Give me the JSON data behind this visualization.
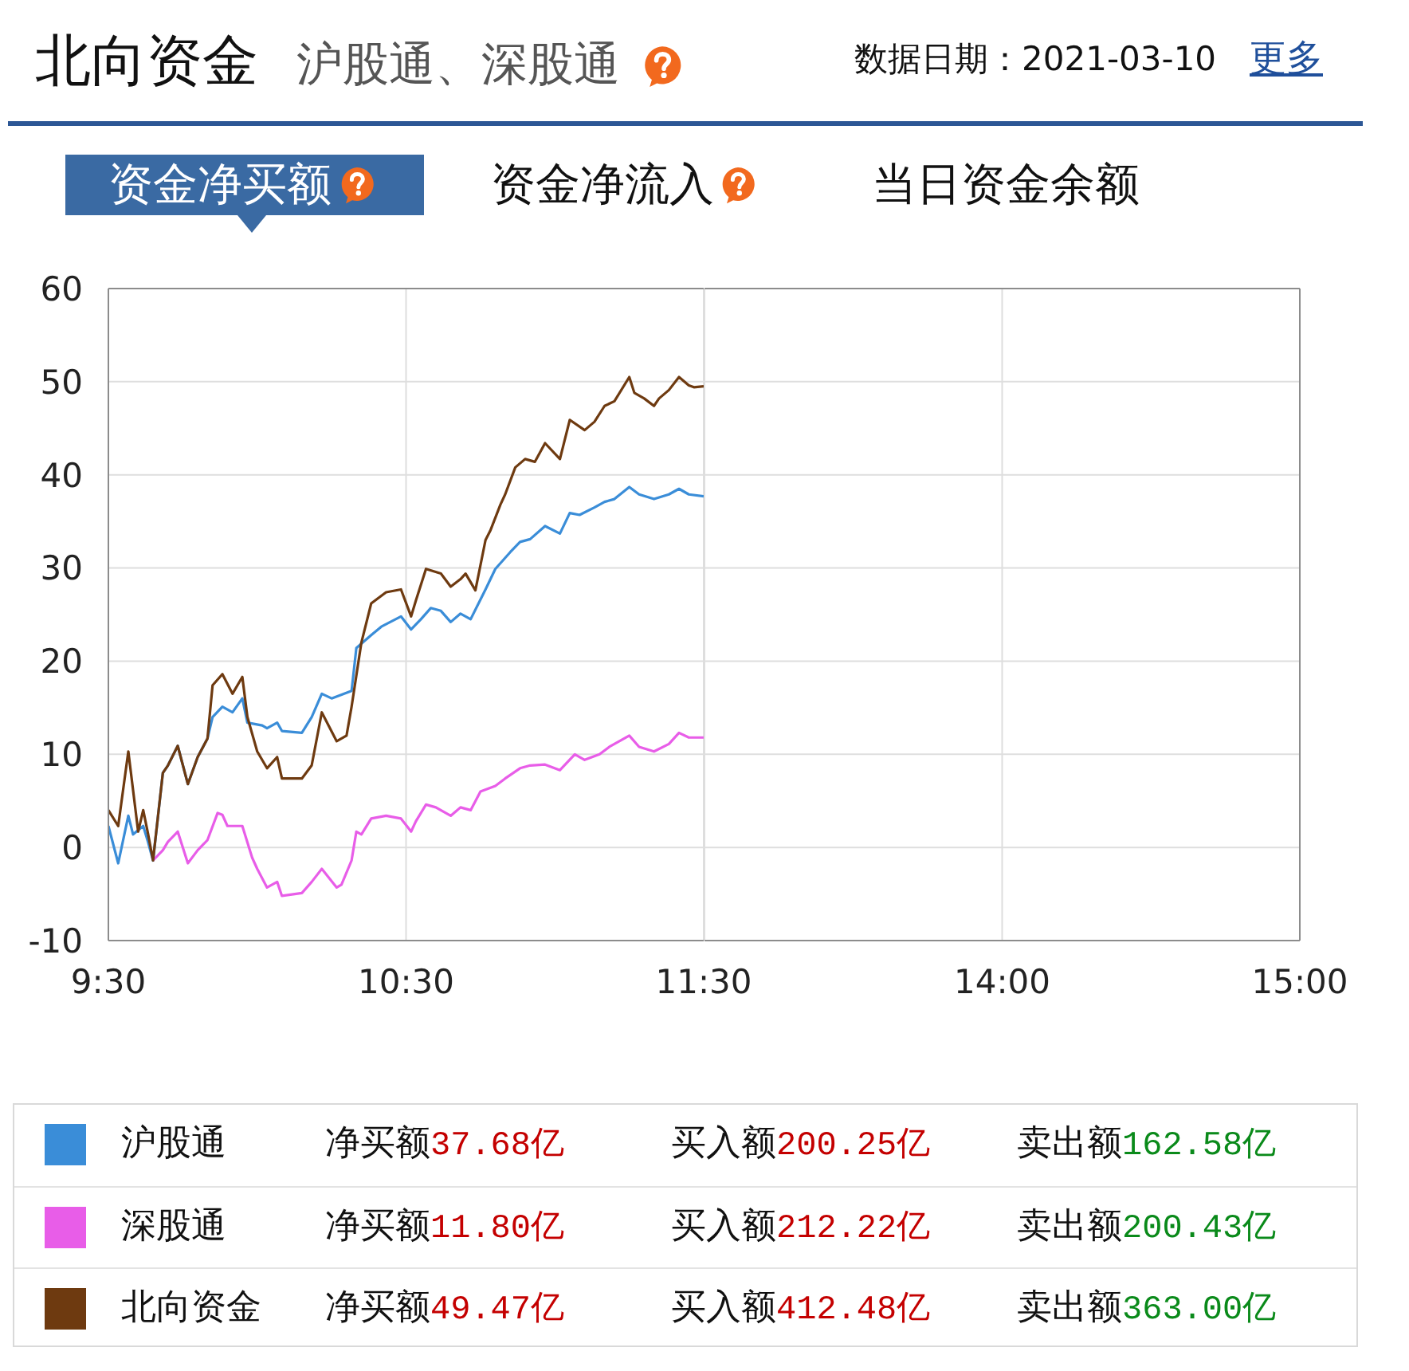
{
  "chart_data": [
    {
      "type": "line",
      "title": "北向资金",
      "subtitle": "沪股通、深股通",
      "annotations": [
        "数据日期：2021-03-10",
        "更多",
        "资金净买额",
        "资金净流入",
        "当日资金余额",
        "净买额37.68亿",
        "买入额200.25亿",
        "卖出额162.58亿",
        "净买额11.80亿",
        "买入额212.22亿",
        "卖出额200.43亿",
        "净买额49.47亿",
        "买入额412.48亿",
        "卖出额363.00亿"
      ],
      "xlim": [
        9.5,
        11.5
      ],
      "xticks": [
        {
          "value": 9.5,
          "label": "9:30"
        },
        {
          "value": 10.5,
          "label": "10:30"
        },
        {
          "value": 11.5,
          "label": "11:30"
        }
      ],
      "ylim": [
        -10,
        60
      ],
      "yticks": [
        -10,
        0,
        10,
        20,
        30,
        40,
        50,
        60
      ],
      "grid": true,
      "legend": "bottom",
      "series": [
        {
          "name": "沪股通",
          "color": "#3a8dd8",
          "x": [
            9.5,
            9.533,
            9.567,
            9.583,
            9.617,
            9.633,
            9.65,
            9.683,
            9.7,
            9.733,
            9.767,
            9.8,
            9.833,
            9.85,
            9.883,
            9.917,
            9.95,
            9.967,
            10.017,
            10.033,
            10.067,
            10.083,
            10.15,
            10.183,
            10.217,
            10.25,
            10.317,
            10.333,
            10.383,
            10.417,
            10.483,
            10.517,
            10.55,
            10.583,
            10.617,
            10.65,
            10.683,
            10.717,
            10.767,
            10.8,
            10.85,
            10.883,
            10.917,
            10.967,
            11.017,
            11.05,
            11.083,
            11.133,
            11.167,
            11.2,
            11.25,
            11.283,
            11.333,
            11.383,
            11.417,
            11.45,
            11.5
          ],
          "values": [
            2.3,
            -1.7,
            3.4,
            1.4,
            2.3,
            0.6,
            -1.4,
            8.0,
            8.8,
            10.9,
            6.8,
            9.7,
            11.7,
            14.0,
            15.1,
            14.5,
            16.0,
            13.4,
            13.1,
            12.8,
            13.4,
            12.5,
            12.3,
            14.0,
            16.5,
            16.0,
            16.8,
            21.4,
            22.8,
            23.7,
            24.8,
            23.4,
            24.5,
            25.7,
            25.4,
            24.2,
            25.1,
            24.5,
            27.7,
            29.9,
            31.7,
            32.8,
            33.1,
            34.5,
            33.7,
            35.9,
            35.7,
            36.5,
            37.1,
            37.4,
            38.7,
            37.9,
            37.4,
            37.9,
            38.5,
            37.9,
            37.7
          ]
        },
        {
          "name": "深股通",
          "color": "#e85de8",
          "x": [
            9.65,
            9.683,
            9.7,
            9.733,
            9.767,
            9.8,
            9.833,
            9.867,
            9.883,
            9.9,
            9.95,
            9.983,
            10.0,
            10.033,
            10.067,
            10.083,
            10.15,
            10.183,
            10.217,
            10.267,
            10.283,
            10.317,
            10.333,
            10.35,
            10.383,
            10.433,
            10.483,
            10.517,
            10.533,
            10.567,
            10.6,
            10.65,
            10.683,
            10.717,
            10.75,
            10.8,
            10.833,
            10.883,
            10.917,
            10.967,
            11.017,
            11.067,
            11.1,
            11.15,
            11.183,
            11.25,
            11.283,
            11.333,
            11.383,
            11.417,
            11.45,
            11.5
          ],
          "values": [
            -1.4,
            -0.3,
            0.6,
            1.7,
            -1.7,
            -0.3,
            0.8,
            3.7,
            3.5,
            2.3,
            2.3,
            -1.1,
            -2.3,
            -4.3,
            -3.7,
            -5.2,
            -4.9,
            -3.7,
            -2.3,
            -4.3,
            -4.0,
            -1.4,
            1.7,
            1.4,
            3.1,
            3.4,
            3.1,
            1.7,
            2.8,
            4.6,
            4.3,
            3.4,
            4.3,
            4.0,
            6.0,
            6.6,
            7.4,
            8.5,
            8.8,
            8.9,
            8.3,
            10.0,
            9.4,
            10.0,
            10.8,
            12.0,
            10.8,
            10.3,
            11.1,
            12.3,
            11.8,
            11.8
          ]
        },
        {
          "name": "北向资金",
          "color": "#6e3a10",
          "x": [
            9.5,
            9.533,
            9.567,
            9.6,
            9.617,
            9.633,
            9.65,
            9.683,
            9.7,
            9.733,
            9.767,
            9.8,
            9.833,
            9.85,
            9.883,
            9.917,
            9.95,
            9.967,
            10.0,
            10.033,
            10.067,
            10.083,
            10.15,
            10.183,
            10.217,
            10.267,
            10.3,
            10.317,
            10.35,
            10.383,
            10.433,
            10.483,
            10.517,
            10.533,
            10.567,
            10.617,
            10.65,
            10.683,
            10.7,
            10.733,
            10.767,
            10.783,
            10.817,
            10.833,
            10.867,
            10.9,
            10.933,
            10.967,
            11.017,
            11.05,
            11.1,
            11.133,
            11.167,
            11.2,
            11.25,
            11.267,
            11.3,
            11.333,
            11.35,
            11.383,
            11.417,
            11.45,
            11.467,
            11.5
          ],
          "values": [
            4.0,
            2.3,
            10.3,
            1.7,
            4.0,
            1.5,
            -1.4,
            8.0,
            8.8,
            10.9,
            6.8,
            9.7,
            11.7,
            17.4,
            18.6,
            16.5,
            18.3,
            14.0,
            10.3,
            8.5,
            9.7,
            7.4,
            7.4,
            8.8,
            14.5,
            11.4,
            12.0,
            15.1,
            22.0,
            26.2,
            27.4,
            27.7,
            24.8,
            26.5,
            29.9,
            29.4,
            28.0,
            28.8,
            29.4,
            27.6,
            33.0,
            34.0,
            36.8,
            37.9,
            40.8,
            41.7,
            41.4,
            43.4,
            41.7,
            45.9,
            44.8,
            45.7,
            47.4,
            47.9,
            50.5,
            48.8,
            48.2,
            47.4,
            48.2,
            49.1,
            50.5,
            49.6,
            49.4,
            49.5
          ]
        }
      ]
    },
    {
      "type": "line",
      "xlim": [
        13,
        15
      ],
      "xticks": [
        {
          "value": 14,
          "label": "14:00"
        },
        {
          "value": 15,
          "label": "15:00"
        }
      ],
      "ylim": [
        -10,
        60
      ],
      "yticks": [
        -10,
        0,
        10,
        20,
        30,
        40,
        50,
        60
      ],
      "grid": true,
      "tick_labels": "x"
    }
  ]
}
